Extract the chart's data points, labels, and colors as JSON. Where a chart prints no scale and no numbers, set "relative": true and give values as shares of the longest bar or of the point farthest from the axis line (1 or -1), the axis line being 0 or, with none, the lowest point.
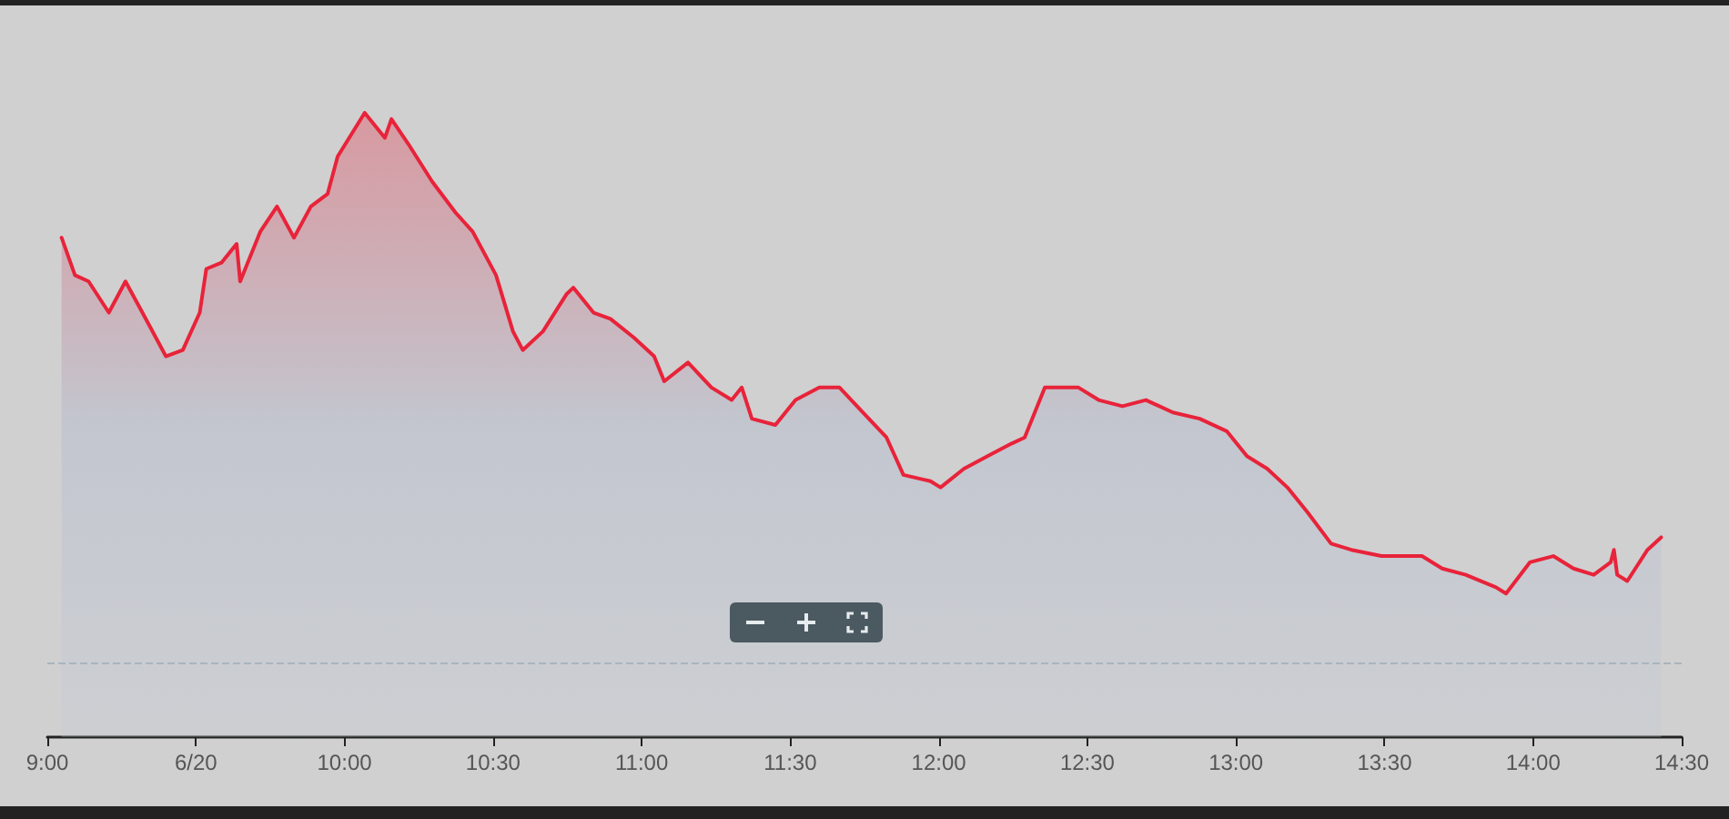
{
  "chart_data": {
    "type": "area",
    "relative": true,
    "x": [
      9.048,
      9.093,
      9.139,
      9.207,
      9.263,
      9.32,
      9.399,
      9.456,
      9.513,
      9.535,
      9.586,
      9.637,
      9.649,
      9.717,
      9.773,
      9.83,
      9.887,
      9.943,
      9.977,
      10.068,
      10.102,
      10.136,
      10.158,
      10.215,
      10.295,
      10.374,
      10.431,
      10.51,
      10.567,
      10.6,
      10.668,
      10.748,
      10.77,
      10.838,
      10.895,
      10.974,
      11.042,
      11.076,
      11.156,
      11.235,
      11.303,
      11.337,
      11.371,
      11.45,
      11.518,
      11.598,
      11.666,
      11.745,
      11.824,
      11.881,
      11.972,
      12.006,
      12.085,
      12.164,
      12.244,
      12.289,
      12.357,
      12.391,
      12.47,
      12.538,
      12.618,
      12.697,
      12.788,
      12.878,
      12.969,
      13.037,
      13.105,
      13.173,
      13.241,
      13.32,
      13.388,
      13.49,
      13.558,
      13.626,
      13.694,
      13.773,
      13.875,
      13.909,
      13.989,
      14.068,
      14.136,
      14.204,
      14.261,
      14.272,
      14.283,
      14.317,
      14.385,
      14.431
    ],
    "series": [
      {
        "color": "#e8233a",
        "values": [
          0.8,
          0.74,
          0.73,
          0.68,
          0.73,
          0.68,
          0.61,
          0.62,
          0.68,
          0.75,
          0.76,
          0.79,
          0.73,
          0.81,
          0.85,
          0.8,
          0.85,
          0.87,
          0.93,
          1.0,
          0.98,
          0.96,
          0.99,
          0.95,
          0.89,
          0.84,
          0.81,
          0.74,
          0.65,
          0.62,
          0.65,
          0.71,
          0.72,
          0.68,
          0.67,
          0.64,
          0.61,
          0.57,
          0.6,
          0.56,
          0.54,
          0.56,
          0.51,
          0.5,
          0.54,
          0.56,
          0.56,
          0.52,
          0.48,
          0.42,
          0.41,
          0.4,
          0.43,
          0.45,
          0.47,
          0.48,
          0.56,
          0.56,
          0.56,
          0.54,
          0.53,
          0.54,
          0.52,
          0.51,
          0.49,
          0.45,
          0.43,
          0.4,
          0.36,
          0.31,
          0.3,
          0.29,
          0.29,
          0.29,
          0.27,
          0.26,
          0.24,
          0.23,
          0.28,
          0.29,
          0.27,
          0.26,
          0.28,
          0.3,
          0.26,
          0.25,
          0.3,
          0.32
        ]
      }
    ],
    "xlim": [
      9,
      14.5
    ],
    "xticks": [
      {
        "value": 9,
        "label": "9:00"
      },
      {
        "value": 9.5,
        "label": "6/20"
      },
      {
        "value": 10,
        "label": "10:00"
      },
      {
        "value": 10.5,
        "label": "10:30"
      },
      {
        "value": 11,
        "label": "11:00"
      },
      {
        "value": 11.5,
        "label": "11:30"
      },
      {
        "value": 12,
        "label": "12:00"
      },
      {
        "value": 12.5,
        "label": "12:30"
      },
      {
        "value": 13,
        "label": "13:00"
      },
      {
        "value": 13.5,
        "label": "13:30"
      },
      {
        "value": 14,
        "label": "14:00"
      },
      {
        "value": 14.5,
        "label": "14:30"
      }
    ],
    "ref_lines": [
      {
        "axis": "y",
        "value": 0.12,
        "color": "#a9b4be",
        "line_style": "dashed"
      }
    ],
    "grid": false,
    "marker": "none",
    "line_style": "solid"
  }
}
